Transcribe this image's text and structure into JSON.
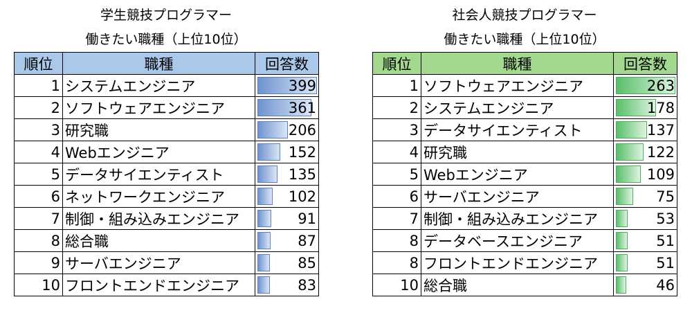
{
  "chart_data": [
    {
      "type": "table",
      "title_line1": "学生競技プログラマー",
      "title_line2": "働きたい職種（上位10位）",
      "headers": {
        "rank": "順位",
        "job": "職種",
        "count": "回答数"
      },
      "header_color": "#a9c8ea",
      "bar_color": "#6f93cf",
      "rows": [
        {
          "rank": "1",
          "job": "システムエンジニア",
          "count": 399
        },
        {
          "rank": "2",
          "job": "ソフトウェアエンジニア",
          "count": 361
        },
        {
          "rank": "3",
          "job": "研究職",
          "count": 206
        },
        {
          "rank": "4",
          "job": "Webエンジニア",
          "count": 152
        },
        {
          "rank": "5",
          "job": "データサイエンティスト",
          "count": 135
        },
        {
          "rank": "6",
          "job": "ネットワークエンジニア",
          "count": 102
        },
        {
          "rank": "7",
          "job": "制御・組み込みエンジニア",
          "count": 91
        },
        {
          "rank": "8",
          "job": "総合職",
          "count": 87
        },
        {
          "rank": "9",
          "job": "サーバエンジニア",
          "count": 85
        },
        {
          "rank": "10",
          "job": "フロントエンドエンジニア",
          "count": 83
        }
      ]
    },
    {
      "type": "table",
      "title_line1": "社会人競技プログラマー",
      "title_line2": "働きたい職種（上位10位）",
      "headers": {
        "rank": "順位",
        "job": "職種",
        "count": "回答数"
      },
      "header_color": "#a3d98f",
      "bar_color": "#59bf6a",
      "rows": [
        {
          "rank": "1",
          "job": "ソフトウェアエンジニア",
          "count": 263
        },
        {
          "rank": "2",
          "job": "システムエンジニア",
          "count": 178
        },
        {
          "rank": "3",
          "job": "データサイエンティスト",
          "count": 137
        },
        {
          "rank": "4",
          "job": "研究職",
          "count": 122
        },
        {
          "rank": "5",
          "job": "Webエンジニア",
          "count": 109
        },
        {
          "rank": "6",
          "job": "サーバエンジニア",
          "count": 75
        },
        {
          "rank": "7",
          "job": "制御・組み込みエンジニア",
          "count": 53
        },
        {
          "rank": "8",
          "job": "データベースエンジニア",
          "count": 51
        },
        {
          "rank": "8",
          "job": "フロントエンドエンジニア",
          "count": 51
        },
        {
          "rank": "10",
          "job": "総合職",
          "count": 46
        }
      ]
    }
  ]
}
